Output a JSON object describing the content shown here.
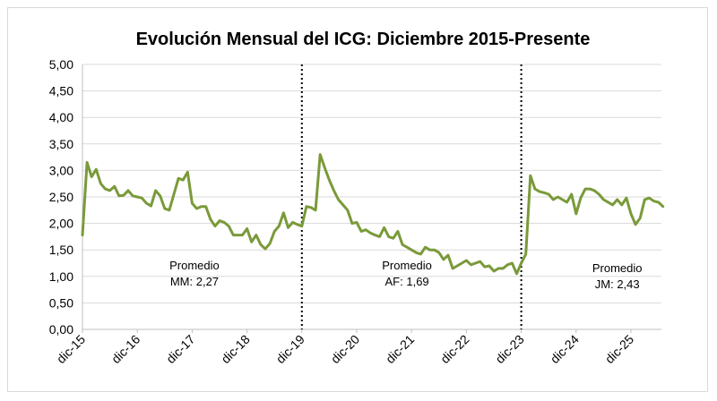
{
  "chart_data": {
    "type": "line",
    "title": "Evolución Mensual del ICG: Diciembre 2015-Presente",
    "xlabel": "",
    "ylabel": "",
    "ylim": [
      0,
      5
    ],
    "yticks": [
      "0,00",
      "0,50",
      "1,00",
      "1,50",
      "2,00",
      "2,50",
      "3,00",
      "3,50",
      "4,00",
      "4,50",
      "5,00"
    ],
    "xticks": [
      "dic-15",
      "dic-16",
      "dic-17",
      "dic-18",
      "dic-19",
      "dic-20",
      "dic-21",
      "dic-22",
      "dic-23",
      "dic-24",
      "dic-25"
    ],
    "grid": true,
    "line_color": "#7a9a3a",
    "series": [
      {
        "name": "ICG",
        "start_month_index": 0,
        "values": [
          1.78,
          3.15,
          2.88,
          3.02,
          2.75,
          2.65,
          2.62,
          2.7,
          2.52,
          2.53,
          2.62,
          2.52,
          2.5,
          2.48,
          2.38,
          2.33,
          2.62,
          2.52,
          2.28,
          2.25,
          2.55,
          2.85,
          2.82,
          2.97,
          2.38,
          2.28,
          2.32,
          2.32,
          2.08,
          1.95,
          2.05,
          2.02,
          1.95,
          1.78,
          1.78,
          1.78,
          1.9,
          1.65,
          1.78,
          1.6,
          1.52,
          1.62,
          1.85,
          1.95,
          2.2,
          1.92,
          2.02,
          1.98,
          1.95,
          2.32,
          2.3,
          2.25,
          3.3,
          3.05,
          2.82,
          2.62,
          2.45,
          2.35,
          2.25,
          2.0,
          2.02,
          1.85,
          1.88,
          1.82,
          1.78,
          1.75,
          1.92,
          1.75,
          1.72,
          1.85,
          1.6,
          1.55,
          1.5,
          1.45,
          1.42,
          1.55,
          1.5,
          1.5,
          1.45,
          1.32,
          1.4,
          1.15,
          1.2,
          1.25,
          1.3,
          1.22,
          1.25,
          1.28,
          1.18,
          1.2,
          1.1,
          1.15,
          1.15,
          1.22,
          1.25,
          1.05,
          1.25,
          1.42,
          2.9,
          2.65,
          2.6,
          2.58,
          2.55,
          2.45,
          2.5,
          2.45,
          2.4,
          2.55,
          2.18,
          2.48,
          2.65,
          2.65,
          2.62,
          2.55,
          2.45,
          2.4,
          2.35,
          2.45,
          2.35,
          2.48,
          2.18,
          1.98,
          2.1,
          2.45,
          2.48,
          2.42,
          2.4,
          2.32
        ]
      }
    ],
    "vlines": [
      {
        "label": "dic-19",
        "month_index": 48
      },
      {
        "label": "dic-23",
        "month_index": 96
      }
    ],
    "annotations": [
      {
        "line1": "Promedio",
        "line2": "MM: 2,27",
        "month_index": 24.5,
        "y": 1.0
      },
      {
        "line1": "Promedio",
        "line2": "AF: 1,69",
        "month_index": 71,
        "y": 1.0
      },
      {
        "line1": "Promedio",
        "line2": "JM: 2,43",
        "month_index": 117,
        "y": 0.95
      }
    ]
  }
}
